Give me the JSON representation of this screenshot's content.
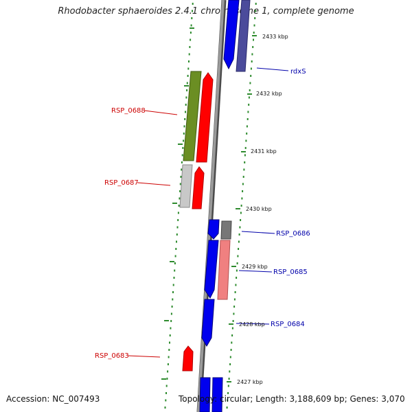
{
  "title": "Rhodobacter sphaeroides 2.4.1 chromosome 1, complete genome",
  "footer": {
    "accession": "Accession: NC_007493",
    "topology": "Topology: circular; Length: 3,188,609 bp; Genes: 3,070"
  },
  "colors": {
    "backbone": "#888888",
    "forward_label": "#cc0000",
    "reverse_label": "#0000aa",
    "tick": "#2e8b2e",
    "blue": "#0000ee",
    "red": "#ff0000",
    "navy": "#4b4b9b",
    "olive": "#6b8e23",
    "light_gray": "#bdbdbd",
    "dark_gray": "#7a7a7a",
    "pink": "#f08080"
  },
  "scale_labels": [
    "2433 kbp",
    "2432 kbp",
    "2431 kbp",
    "2430 kbp",
    "2429 kbp",
    "2428 kbp",
    "2427 kbp"
  ],
  "gene_labels": {
    "left": [
      "RSP_0688",
      "RSP_0687",
      "RSP_0683"
    ],
    "right": [
      "rdxS",
      "RSP_0686",
      "RSP_0685",
      "RSP_0684"
    ]
  }
}
